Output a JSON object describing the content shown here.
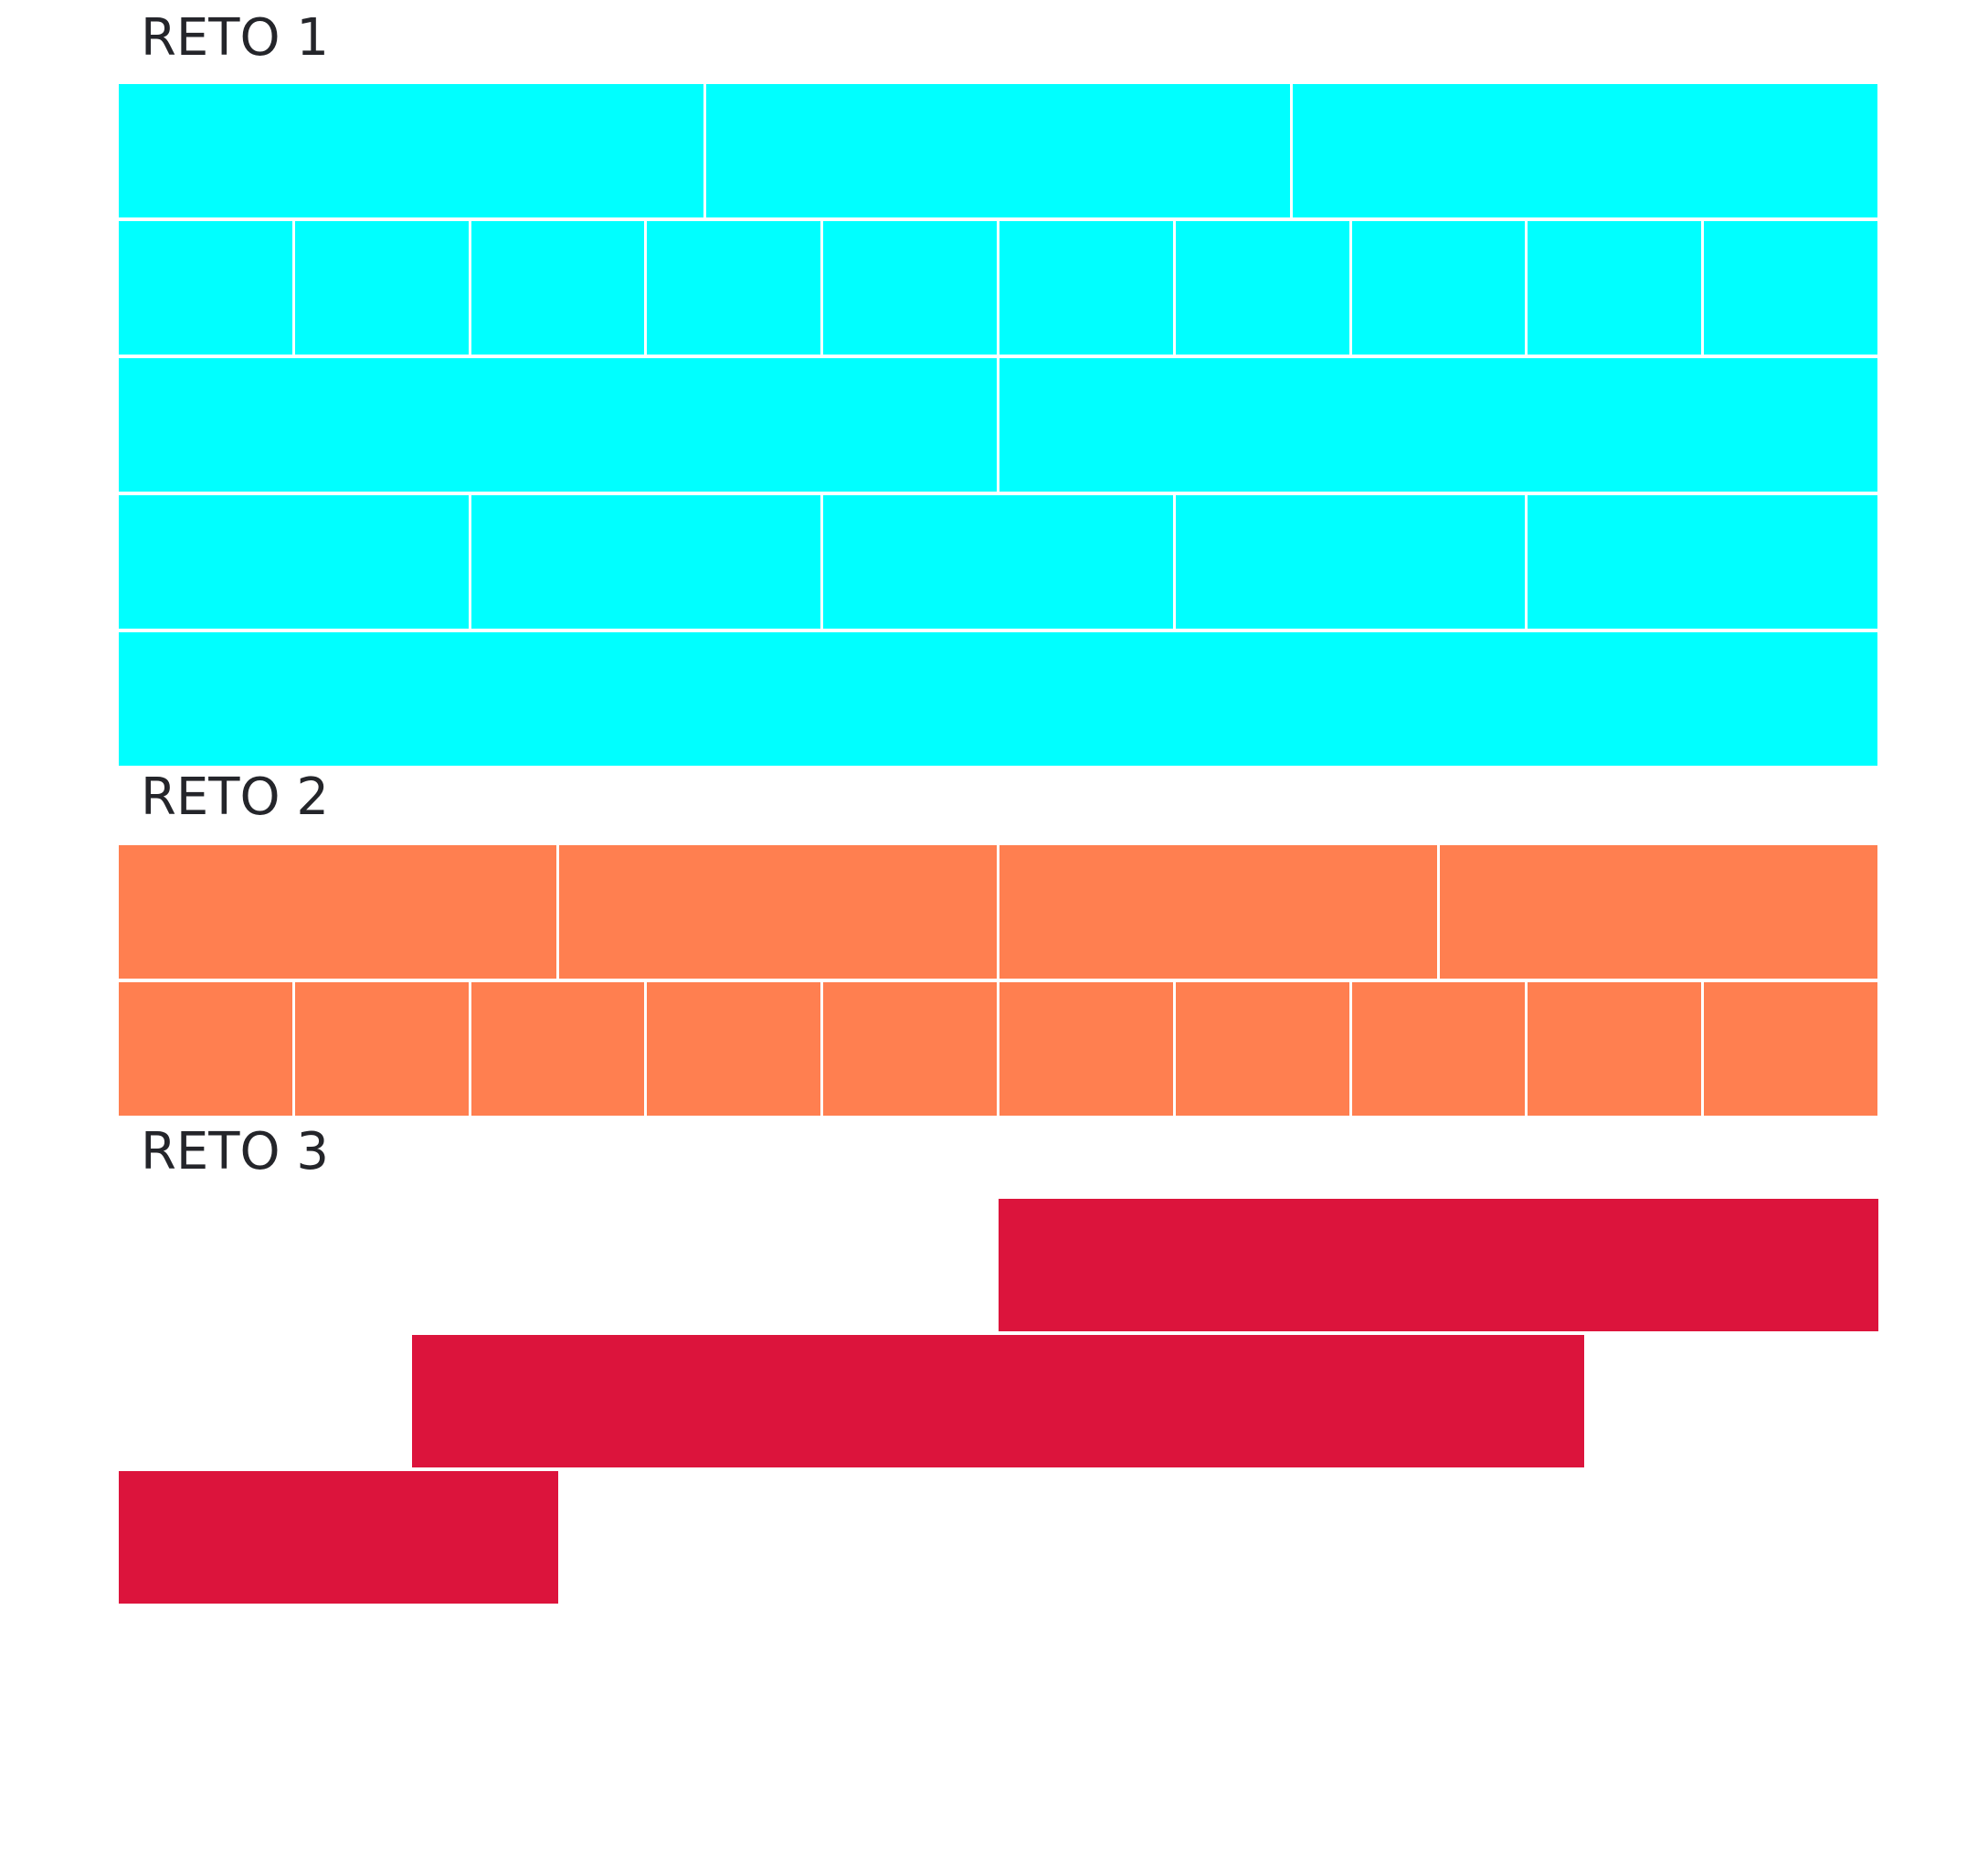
{
  "colors": {
    "reto1": "#00ffff",
    "reto2": "#ff7f50",
    "reto3": "#dc143c",
    "title": "#24252a"
  },
  "sections": [
    {
      "title": "RETO 1",
      "rows": [
        3,
        10,
        2,
        5,
        1
      ]
    },
    {
      "title": "RETO 2",
      "rows": [
        4,
        10
      ]
    },
    {
      "title": "RETO 3",
      "bars": [
        {
          "start": 0.5,
          "end": 1.0
        },
        {
          "start": 0.1667,
          "end": 0.8333
        },
        {
          "start": 0.0,
          "end": 0.25
        }
      ]
    }
  ]
}
